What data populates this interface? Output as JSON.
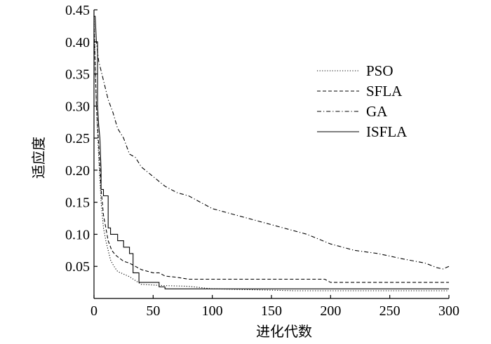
{
  "chart_data": {
    "type": "line",
    "xlabel": "进化代数",
    "ylabel": "适应度",
    "xlim": [
      0,
      300
    ],
    "ylim": [
      0,
      0.45
    ],
    "xticks": [
      "0",
      "50",
      "100",
      "150",
      "200",
      "250",
      "300"
    ],
    "yticks": [
      "0.05",
      "0.10",
      "0.15",
      "0.20",
      "0.25",
      "0.30",
      "0.35",
      "0.40",
      "0.45"
    ],
    "grid": false,
    "legend_position": "top-right",
    "series": [
      {
        "name": "PSO",
        "style": "dotted",
        "x": [
          0,
          2,
          4,
          6,
          8,
          10,
          12,
          14,
          16,
          18,
          20,
          25,
          30,
          35,
          40,
          50,
          60,
          80,
          100,
          103,
          170,
          300
        ],
        "y": [
          0.44,
          0.3,
          0.22,
          0.15,
          0.11,
          0.09,
          0.075,
          0.06,
          0.053,
          0.047,
          0.042,
          0.038,
          0.034,
          0.028,
          0.022,
          0.021,
          0.02,
          0.019,
          0.015,
          0.015,
          0.012,
          0.012
        ]
      },
      {
        "name": "SFLA",
        "style": "dashed",
        "x": [
          0,
          2,
          4,
          6,
          8,
          10,
          12,
          15,
          18,
          20,
          25,
          30,
          35,
          40,
          50,
          55,
          60,
          70,
          80,
          100,
          150,
          195,
          200,
          300
        ],
        "y": [
          0.43,
          0.3,
          0.24,
          0.17,
          0.13,
          0.11,
          0.09,
          0.075,
          0.068,
          0.065,
          0.058,
          0.055,
          0.05,
          0.045,
          0.04,
          0.04,
          0.035,
          0.033,
          0.03,
          0.03,
          0.03,
          0.03,
          0.025,
          0.025
        ]
      },
      {
        "name": "GA",
        "style": "dashdot",
        "x": [
          0,
          2,
          4,
          8,
          12,
          16,
          20,
          25,
          30,
          35,
          40,
          50,
          60,
          70,
          80,
          90,
          100,
          120,
          140,
          160,
          180,
          200,
          220,
          240,
          260,
          280,
          290,
          295,
          300
        ],
        "y": [
          0.4,
          0.4,
          0.37,
          0.34,
          0.31,
          0.29,
          0.265,
          0.25,
          0.225,
          0.22,
          0.205,
          0.19,
          0.175,
          0.165,
          0.16,
          0.15,
          0.14,
          0.13,
          0.12,
          0.11,
          0.1,
          0.085,
          0.075,
          0.07,
          0.062,
          0.055,
          0.048,
          0.046,
          0.05
        ]
      },
      {
        "name": "ISFLA",
        "style": "solid",
        "x": [
          0,
          1,
          2,
          3,
          3,
          4,
          5,
          6,
          6,
          8,
          8,
          12,
          12,
          14,
          14,
          20,
          20,
          25,
          25,
          30,
          30,
          33,
          33,
          38,
          38,
          55,
          55,
          60,
          60,
          300
        ],
        "y": [
          0.44,
          0.44,
          0.4,
          0.4,
          0.3,
          0.27,
          0.25,
          0.2,
          0.17,
          0.17,
          0.16,
          0.16,
          0.11,
          0.11,
          0.1,
          0.1,
          0.09,
          0.09,
          0.08,
          0.08,
          0.07,
          0.07,
          0.04,
          0.04,
          0.025,
          0.025,
          0.018,
          0.018,
          0.015,
          0.015
        ]
      }
    ]
  }
}
